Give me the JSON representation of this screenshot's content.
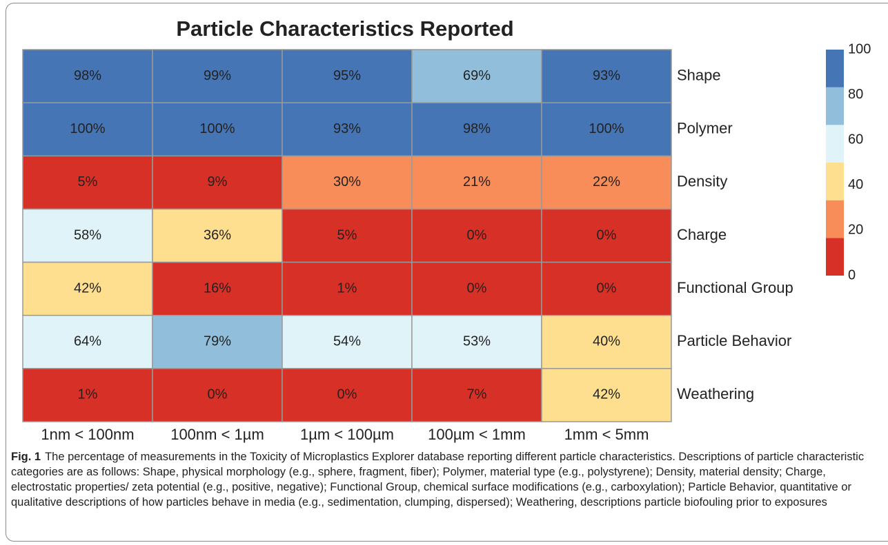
{
  "chart_data": {
    "type": "heatmap",
    "title": "Particle Characteristics Reported",
    "categories": [
      "1nm < 100nm",
      "100nm < 1µm",
      "1µm < 100µm",
      "100µm < 1mm",
      "1mm < 5mm"
    ],
    "rows": [
      "Shape",
      "Polymer",
      "Density",
      "Charge",
      "Functional Group",
      "Particle Behavior",
      "Weathering"
    ],
    "values": [
      [
        98,
        99,
        95,
        69,
        93
      ],
      [
        100,
        100,
        93,
        98,
        100
      ],
      [
        5,
        9,
        30,
        21,
        22
      ],
      [
        58,
        36,
        5,
        0,
        0
      ],
      [
        42,
        16,
        1,
        0,
        0
      ],
      [
        64,
        79,
        54,
        53,
        40
      ],
      [
        1,
        0,
        0,
        7,
        42
      ]
    ],
    "value_labels": [
      [
        "98%",
        "99%",
        "95%",
        "69%",
        "93%"
      ],
      [
        "100%",
        "100%",
        "93%",
        "98%",
        "100%"
      ],
      [
        "5%",
        "9%",
        "30%",
        "21%",
        "22%"
      ],
      [
        "58%",
        "36%",
        "5%",
        "0%",
        "0%"
      ],
      [
        "42%",
        "16%",
        "1%",
        "0%",
        "0%"
      ],
      [
        "64%",
        "79%",
        "54%",
        "53%",
        "40%"
      ],
      [
        "1%",
        "0%",
        "0%",
        "7%",
        "42%"
      ]
    ],
    "clim": [
      0,
      100
    ],
    "cticks": [
      0,
      20,
      40,
      60,
      80,
      100
    ],
    "colors": [
      "#d73027",
      "#f88d59",
      "#fddf8f",
      "#e0f3f8",
      "#91bfdb",
      "#4575b4"
    ]
  },
  "caption": {
    "label": "Fig. 1",
    "text": "The percentage of measurements in the Toxicity of Microplastics Explorer database reporting different particle characteristics. Descriptions of particle characteristic categories are as follows: Shape, physical morphology (e.g., sphere, fragment, fiber); Polymer, material type (e.g., polystyrene); Density, material density; Charge, electrostatic properties/ zeta potential (e.g., positive, negative); Functional Group, chemical surface modifications (e.g., carboxylation); Particle Behavior, quantitative or qualitative descriptions of how particles behave in media (e.g., sedimentation, clumping, dispersed); Weathering, descriptions particle biofouling prior to exposures"
  }
}
